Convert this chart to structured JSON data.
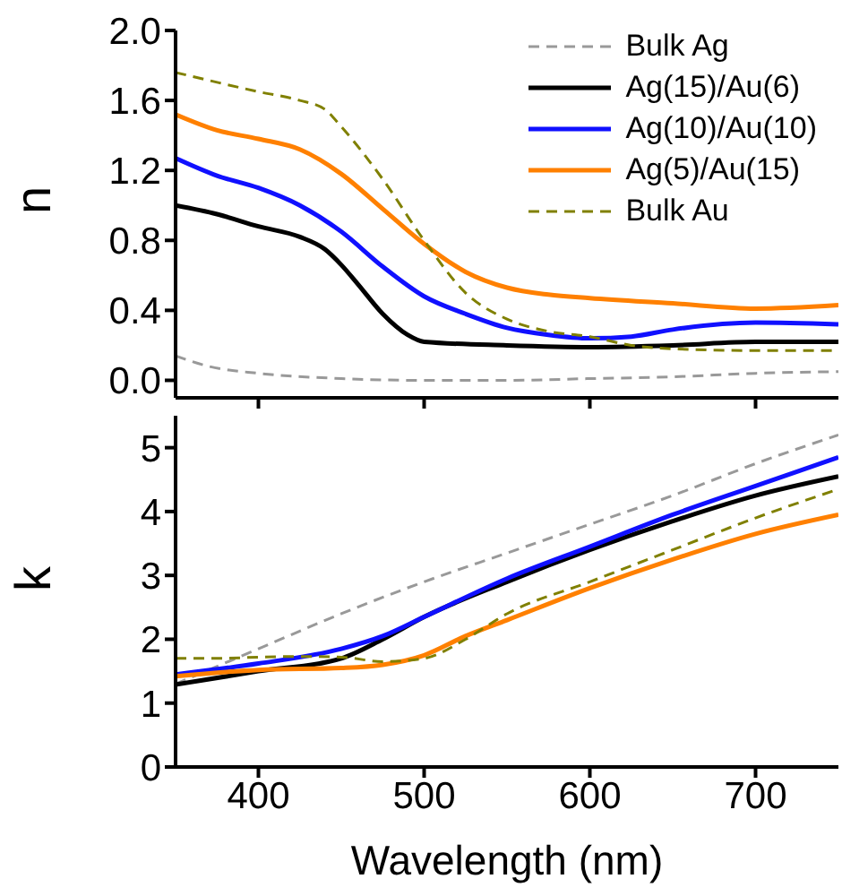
{
  "chart_data": [
    {
      "type": "line",
      "ylabel": "n",
      "xlim": [
        350,
        750
      ],
      "xticks": [
        400,
        500,
        600,
        700
      ],
      "ylim": [
        -0.1,
        2.0
      ],
      "yticks": [
        {
          "value": 0,
          "label": "0.0"
        },
        {
          "value": 0.4,
          "label": "0.4"
        },
        {
          "value": 0.8,
          "label": "0.8"
        },
        {
          "value": 1.2,
          "label": "1.2"
        },
        {
          "value": 1.6,
          "label": "1.6"
        },
        {
          "value": 2.0,
          "label": "2.0"
        }
      ],
      "tick_labels": "y",
      "grid": false,
      "legend": "top right",
      "series": [
        {
          "name": "Bulk Ag",
          "color": "#999999",
          "line_style": "dashed",
          "x": [
            350,
            370,
            400,
            450,
            500,
            550,
            600,
            650,
            700,
            750
          ],
          "values": [
            0.14,
            0.08,
            0.04,
            0.01,
            0.0,
            0.0,
            0.01,
            0.02,
            0.04,
            0.05
          ]
        },
        {
          "name": "Ag(15)/Au(6)",
          "color": "#000000",
          "line_style": "solid",
          "x": [
            350,
            375,
            400,
            425,
            440,
            450,
            460,
            475,
            490,
            500,
            550,
            600,
            650,
            700,
            750
          ],
          "values": [
            1.0,
            0.95,
            0.88,
            0.82,
            0.75,
            0.66,
            0.55,
            0.38,
            0.26,
            0.22,
            0.2,
            0.19,
            0.2,
            0.22,
            0.22
          ]
        },
        {
          "name": "Ag(10)/Au(10)",
          "color": "#1010ff",
          "line_style": "solid",
          "x": [
            350,
            375,
            400,
            425,
            450,
            475,
            500,
            525,
            550,
            575,
            600,
            625,
            650,
            700,
            750
          ],
          "values": [
            1.27,
            1.17,
            1.1,
            1.0,
            0.85,
            0.65,
            0.48,
            0.38,
            0.3,
            0.26,
            0.24,
            0.25,
            0.29,
            0.33,
            0.32
          ]
        },
        {
          "name": "Ag(5)/Au(15)",
          "color": "#ff8000",
          "line_style": "solid",
          "x": [
            350,
            375,
            400,
            425,
            450,
            475,
            500,
            525,
            550,
            575,
            600,
            650,
            700,
            750
          ],
          "values": [
            1.52,
            1.43,
            1.38,
            1.32,
            1.18,
            0.98,
            0.78,
            0.62,
            0.53,
            0.49,
            0.47,
            0.44,
            0.41,
            0.43
          ]
        },
        {
          "name": "Bulk Au",
          "color": "#808000",
          "line_style": "dashed",
          "x": [
            350,
            400,
            425,
            440,
            450,
            475,
            500,
            525,
            550,
            575,
            600,
            625,
            650,
            700,
            750
          ],
          "values": [
            1.76,
            1.65,
            1.6,
            1.55,
            1.45,
            1.15,
            0.8,
            0.5,
            0.35,
            0.28,
            0.25,
            0.2,
            0.18,
            0.17,
            0.17
          ]
        }
      ]
    },
    {
      "type": "line",
      "ylabel": "k",
      "xlabel": "Wavelength (nm)",
      "xlim": [
        350,
        750
      ],
      "xticks": [
        400,
        500,
        600,
        700
      ],
      "ylim": [
        0,
        5.5
      ],
      "yticks": [
        0,
        1,
        2,
        3,
        4,
        5
      ],
      "grid": false,
      "legend": false,
      "series": [
        {
          "color": "#999999",
          "line_style": "dashed",
          "x": [
            350,
            400,
            450,
            500,
            550,
            600,
            650,
            700,
            750
          ],
          "values": [
            1.3,
            1.85,
            2.4,
            2.9,
            3.35,
            3.8,
            4.25,
            4.75,
            5.2
          ]
        },
        {
          "color": "#000000",
          "line_style": "solid",
          "x": [
            350,
            400,
            450,
            475,
            500,
            550,
            600,
            650,
            700,
            750
          ],
          "values": [
            1.29,
            1.5,
            1.7,
            2.0,
            2.35,
            2.9,
            3.4,
            3.85,
            4.25,
            4.55
          ]
        },
        {
          "color": "#1010ff",
          "line_style": "solid",
          "x": [
            350,
            400,
            450,
            475,
            500,
            550,
            600,
            650,
            700,
            750
          ],
          "values": [
            1.45,
            1.62,
            1.85,
            2.05,
            2.35,
            2.95,
            3.45,
            3.95,
            4.4,
            4.85
          ]
        },
        {
          "color": "#ff8000",
          "line_style": "solid",
          "x": [
            350,
            400,
            450,
            475,
            500,
            525,
            550,
            600,
            650,
            700,
            750
          ],
          "values": [
            1.42,
            1.52,
            1.55,
            1.6,
            1.75,
            2.05,
            2.3,
            2.8,
            3.25,
            3.65,
            3.95
          ]
        },
        {
          "color": "#808000",
          "line_style": "dashed",
          "x": [
            350,
            375,
            400,
            425,
            450,
            475,
            500,
            525,
            550,
            600,
            650,
            700,
            750
          ],
          "values": [
            1.7,
            1.7,
            1.72,
            1.73,
            1.72,
            1.65,
            1.7,
            2.0,
            2.4,
            2.9,
            3.4,
            3.9,
            4.35
          ]
        }
      ]
    }
  ]
}
